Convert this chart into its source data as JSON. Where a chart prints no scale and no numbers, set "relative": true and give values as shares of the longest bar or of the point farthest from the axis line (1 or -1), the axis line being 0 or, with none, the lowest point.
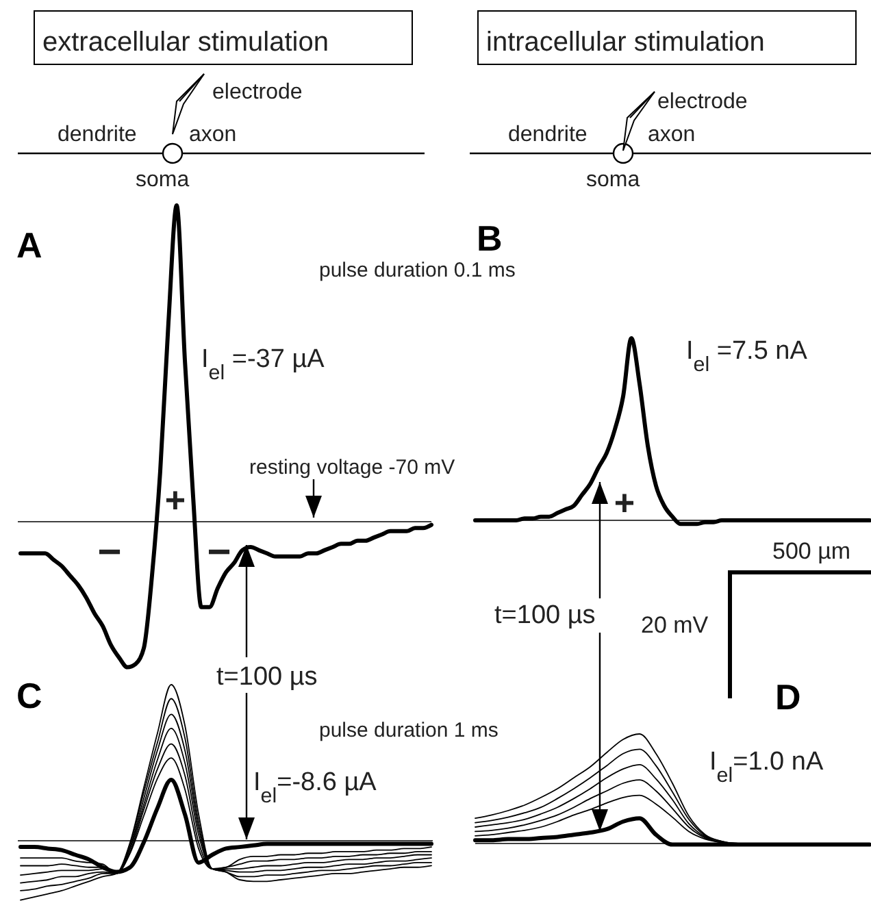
{
  "chart_data": [
    {
      "type": "line",
      "title": "A",
      "relative": true,
      "categories": [
        null,
        null,
        null,
        null,
        null,
        null,
        null,
        null,
        null,
        null,
        null,
        null,
        null,
        null,
        null,
        null,
        null,
        null,
        null,
        null,
        null,
        null,
        null,
        null,
        null,
        null,
        null,
        null,
        null,
        null,
        null,
        null,
        null,
        null,
        null,
        null,
        null,
        null,
        null,
        null,
        null,
        null,
        null,
        null,
        null,
        null,
        null,
        null,
        null,
        null,
        null
      ],
      "series": [
        {
          "color": "#000000",
          "values": [
            -0.1,
            -0.1,
            -0.1,
            -0.1,
            -0.12,
            -0.14,
            -0.17,
            -0.2,
            -0.24,
            -0.29,
            -0.33,
            -0.39,
            -0.43,
            -0.46,
            -0.45,
            -0.4,
            -0.17,
            0.16,
            0.63,
            1,
            0.51,
            0.08,
            -0.27,
            -0.27,
            -0.21,
            -0.16,
            -0.13,
            -0.09,
            -0.08,
            -0.09,
            -0.1,
            -0.11,
            -0.11,
            -0.11,
            -0.11,
            -0.1,
            -0.1,
            -0.09,
            -0.08,
            -0.07,
            -0.07,
            -0.06,
            -0.06,
            -0.05,
            -0.04,
            -0.03,
            -0.03,
            -0.03,
            -0.02,
            -0.02,
            -0.01
          ]
        }
      ],
      "annotations": [
        "extracellular stimulation",
        "electrode",
        "dendrite",
        "axon",
        "soma",
        "I$_{el}$ =-37 µA",
        "resting voltage -70 mV",
        "+",
        "−",
        "−",
        "t=100 µs",
        "pulse duration 0.1 ms"
      ]
    },
    {
      "type": "line",
      "title": "B",
      "relative": true,
      "categories": [
        null,
        null,
        null,
        null,
        null,
        null,
        null,
        null,
        null,
        null,
        null,
        null,
        null,
        null,
        null,
        null,
        null,
        null,
        null,
        null,
        null,
        null,
        null,
        null,
        null,
        null,
        null,
        null,
        null,
        null,
        null,
        null,
        null,
        null,
        null,
        null,
        null,
        null,
        null,
        null,
        null,
        null,
        null,
        null,
        null,
        null,
        null,
        null,
        null
      ],
      "series": [
        {
          "color": "#000000",
          "values": [
            0,
            0,
            0,
            0,
            0,
            0,
            0.01,
            0.01,
            0.02,
            0.02,
            0.04,
            0.06,
            0.08,
            0.14,
            0.2,
            0.29,
            0.37,
            0.5,
            0.68,
            1,
            0.75,
            0.41,
            0.19,
            0.08,
            0.02,
            -0.02,
            -0.02,
            -0.02,
            -0.01,
            -0.01,
            0,
            0,
            0,
            0,
            0,
            0,
            0,
            0,
            0,
            0,
            0,
            0,
            0,
            0,
            0,
            0,
            0,
            0,
            0
          ]
        }
      ],
      "annotations": [
        "intracellular stimulation",
        "electrode",
        "dendrite",
        "axon",
        "soma",
        "I$_{el}$ =7.5 nA",
        "+",
        "t=100 µs",
        "500 µm",
        "20 mV"
      ]
    },
    {
      "type": "line",
      "title": "C",
      "relative": true,
      "categories": [
        null,
        null,
        null,
        null,
        null,
        null,
        null,
        null,
        null,
        null,
        null,
        null,
        null,
        null,
        null,
        null,
        null,
        null,
        null,
        null,
        null,
        null,
        null,
        null,
        null,
        null,
        null,
        null,
        null,
        null,
        null
      ],
      "series": [
        {
          "color": "#000000",
          "values": [
            -0.11,
            -0.11,
            -0.11,
            -0.11,
            -0.13,
            -0.14,
            -0.15,
            -0.21,
            -0.08,
            0.16,
            0.4,
            0.53,
            0.33,
            -0.05,
            -0.18,
            -0.17,
            -0.12,
            -0.1,
            -0.1,
            -0.09,
            -0.09,
            -0.08,
            -0.08,
            -0.07,
            -0.07,
            -0.07,
            -0.06,
            -0.06,
            -0.05,
            -0.05,
            -0.04
          ]
        },
        {
          "color": "#000000",
          "values": [
            -0.16,
            -0.16,
            -0.16,
            -0.15,
            -0.16,
            -0.17,
            -0.17,
            -0.21,
            -0.07,
            0.2,
            0.46,
            0.62,
            0.42,
            -0.01,
            -0.18,
            -0.17,
            -0.15,
            -0.13,
            -0.13,
            -0.12,
            -0.12,
            -0.11,
            -0.11,
            -0.1,
            -0.1,
            -0.09,
            -0.09,
            -0.08,
            -0.08,
            -0.07,
            -0.07
          ]
        },
        {
          "color": "#000000",
          "values": [
            -0.22,
            -0.21,
            -0.2,
            -0.19,
            -0.19,
            -0.19,
            -0.18,
            -0.21,
            -0.05,
            0.23,
            0.52,
            0.72,
            0.5,
            0.04,
            -0.18,
            -0.18,
            -0.18,
            -0.17,
            -0.16,
            -0.16,
            -0.15,
            -0.14,
            -0.14,
            -0.13,
            -0.12,
            -0.12,
            -0.11,
            -0.11,
            -0.1,
            -0.09,
            -0.09
          ]
        },
        {
          "color": "#000000",
          "values": [
            -0.27,
            -0.26,
            -0.25,
            -0.23,
            -0.23,
            -0.21,
            -0.2,
            -0.21,
            -0.04,
            0.27,
            0.58,
            0.81,
            0.58,
            0.08,
            -0.18,
            -0.19,
            -0.2,
            -0.2,
            -0.19,
            -0.19,
            -0.18,
            -0.17,
            -0.17,
            -0.16,
            -0.15,
            -0.15,
            -0.14,
            -0.13,
            -0.13,
            -0.12,
            -0.11
          ]
        },
        {
          "color": "#000000",
          "values": [
            -0.32,
            -0.31,
            -0.29,
            -0.28,
            -0.26,
            -0.24,
            -0.21,
            -0.21,
            -0.02,
            0.31,
            0.63,
            0.91,
            0.66,
            0.12,
            -0.18,
            -0.2,
            -0.23,
            -0.23,
            -0.22,
            -0.22,
            -0.21,
            -0.2,
            -0.19,
            -0.19,
            -0.18,
            -0.17,
            -0.16,
            -0.16,
            -0.15,
            -0.14,
            -0.14
          ]
        },
        {
          "color": "#000000",
          "values": [
            -0.38,
            -0.36,
            -0.34,
            -0.32,
            -0.29,
            -0.26,
            -0.23,
            -0.21,
            -0.01,
            0.34,
            0.69,
            1,
            0.74,
            0.17,
            -0.18,
            -0.2,
            -0.25,
            -0.26,
            -0.26,
            -0.25,
            -0.24,
            -0.23,
            -0.22,
            -0.21,
            -0.21,
            -0.2,
            -0.19,
            -0.18,
            -0.17,
            -0.17,
            -0.16
          ]
        },
        {
          "color": "#000000",
          "values": [
            -0.04,
            -0.04,
            -0.05,
            -0.06,
            -0.09,
            -0.12,
            -0.17,
            -0.2,
            -0.17,
            -0.01,
            0.21,
            0.39,
            0.17,
            -0.14,
            -0.09,
            -0.05,
            -0.04,
            -0.03,
            -0.02,
            -0.02,
            -0.02,
            -0.02,
            -0.02,
            -0.02,
            -0.02,
            -0.02,
            -0.02,
            -0.02,
            -0.02,
            -0.02,
            -0.02
          ]
        }
      ],
      "annotations": [
        "I$_{el}$=-8.6 µA",
        "pulse duration 1 ms"
      ]
    },
    {
      "type": "line",
      "title": "D",
      "relative": true,
      "categories": [
        null,
        null,
        null,
        null,
        null,
        null,
        null,
        null,
        null,
        null,
        null,
        null,
        null,
        null,
        null,
        null,
        null,
        null,
        null,
        null,
        null,
        null,
        null,
        null,
        null
      ],
      "series": [
        {
          "color": "#000000",
          "values": [
            0.07,
            0.08,
            0.1,
            0.12,
            0.15,
            0.2,
            0.26,
            0.31,
            0.37,
            0.42,
            0.44,
            0.36,
            0.24,
            0.11,
            0.04,
            0.01,
            0,
            0,
            0,
            0,
            0,
            0,
            0,
            0,
            0
          ]
        },
        {
          "color": "#000000",
          "values": [
            0.11,
            0.12,
            0.14,
            0.17,
            0.21,
            0.26,
            0.33,
            0.41,
            0.48,
            0.55,
            0.58,
            0.48,
            0.32,
            0.15,
            0.05,
            0.01,
            0,
            0,
            0,
            0,
            0,
            0,
            0,
            0,
            0
          ]
        },
        {
          "color": "#000000",
          "values": [
            0.15,
            0.17,
            0.19,
            0.22,
            0.27,
            0.33,
            0.41,
            0.5,
            0.6,
            0.68,
            0.72,
            0.59,
            0.4,
            0.18,
            0.06,
            0.01,
            0,
            0,
            0,
            0,
            0,
            0,
            0,
            0,
            0
          ]
        },
        {
          "color": "#000000",
          "values": [
            0.19,
            0.21,
            0.24,
            0.28,
            0.33,
            0.41,
            0.5,
            0.6,
            0.71,
            0.82,
            0.86,
            0.71,
            0.47,
            0.22,
            0.07,
            0.02,
            0,
            0,
            0,
            0,
            0,
            0,
            0,
            0,
            0
          ]
        },
        {
          "color": "#000000",
          "values": [
            0.23,
            0.26,
            0.3,
            0.35,
            0.42,
            0.5,
            0.6,
            0.7,
            0.83,
            0.95,
            1,
            0.82,
            0.55,
            0.25,
            0.08,
            0.02,
            0,
            0,
            0,
            0,
            0,
            0,
            0,
            0,
            0
          ]
        },
        {
          "color": "#000000",
          "values": [
            0.03,
            0.03,
            0.04,
            0.04,
            0.05,
            0.06,
            0.08,
            0.1,
            0.13,
            0.2,
            0.23,
            0.08,
            -0.01,
            -0.01,
            -0.01,
            -0.01,
            -0.01,
            -0.01,
            -0.01,
            -0.01,
            -0.01,
            -0.01,
            -0.01,
            -0.01,
            -0.01
          ]
        }
      ],
      "annotations": [
        "I$_{el}$=1.0 nA"
      ]
    }
  ]
}
